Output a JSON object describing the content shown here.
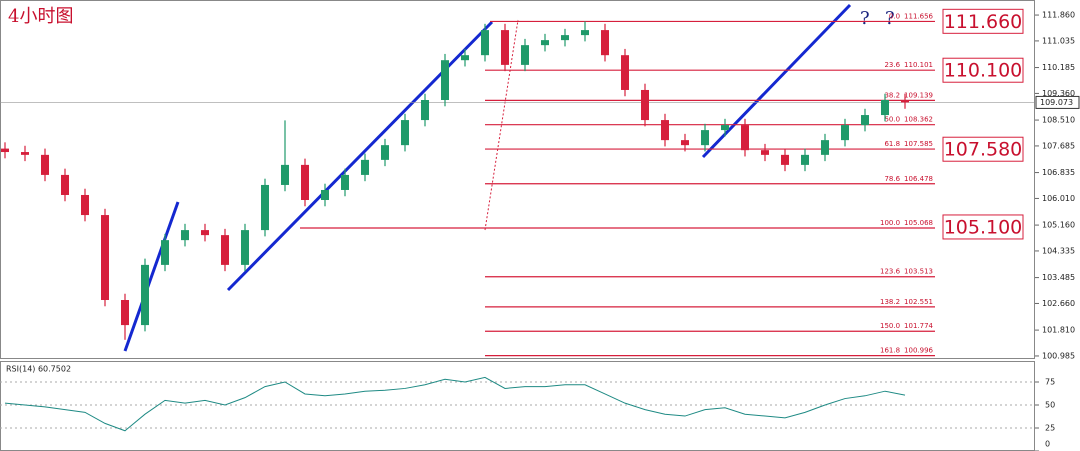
{
  "chart_data": [
    {
      "type": "candlestick",
      "title": "4小时图",
      "open": [
        107.6,
        107.49,
        107.4,
        106.76,
        106.12,
        105.48,
        102.77,
        101.97,
        103.89,
        104.68,
        105.0,
        104.84,
        103.89,
        105.0,
        106.44,
        107.08,
        105.96,
        106.28,
        106.76,
        107.24,
        107.71,
        108.51,
        109.15,
        110.42,
        110.58,
        111.38,
        110.27,
        110.9,
        111.06,
        111.22,
        111.38,
        110.58,
        109.47,
        108.51,
        107.87,
        107.71,
        108.19,
        108.35,
        107.55,
        107.4,
        107.08,
        107.4,
        107.87,
        108.35,
        108.67,
        109.15
      ],
      "high": [
        107.8,
        107.69,
        107.6,
        106.96,
        106.32,
        105.68,
        102.97,
        104.09,
        104.88,
        105.2,
        105.2,
        105.04,
        105.2,
        106.64,
        108.5,
        107.28,
        106.48,
        106.96,
        107.44,
        107.91,
        108.71,
        109.35,
        110.62,
        110.78,
        111.58,
        111.58,
        111.1,
        111.26,
        111.42,
        111.66,
        111.58,
        110.78,
        109.67,
        108.71,
        108.07,
        108.39,
        108.55,
        108.55,
        107.75,
        107.6,
        107.6,
        108.07,
        108.55,
        108.87,
        109.35,
        109.35
      ],
      "low": [
        107.29,
        107.2,
        106.56,
        105.92,
        105.28,
        102.57,
        101.5,
        101.77,
        103.69,
        104.48,
        104.64,
        103.69,
        103.69,
        104.8,
        106.24,
        105.76,
        105.76,
        106.08,
        106.56,
        107.04,
        107.51,
        108.31,
        108.95,
        110.22,
        110.38,
        110.07,
        110.07,
        110.7,
        110.86,
        111.02,
        110.38,
        109.27,
        108.31,
        107.67,
        107.51,
        107.51,
        107.99,
        107.35,
        107.2,
        106.88,
        106.88,
        107.2,
        107.67,
        108.15,
        108.47,
        108.87
      ],
      "close": [
        107.49,
        107.4,
        106.76,
        106.12,
        105.48,
        102.77,
        101.97,
        103.89,
        104.68,
        105.0,
        104.84,
        103.89,
        105.0,
        106.44,
        107.08,
        105.96,
        106.28,
        106.76,
        107.24,
        107.71,
        108.51,
        109.15,
        110.42,
        110.58,
        111.38,
        110.27,
        110.9,
        111.06,
        111.22,
        111.38,
        110.58,
        109.47,
        108.51,
        107.87,
        107.71,
        108.19,
        108.35,
        107.55,
        107.4,
        107.08,
        107.4,
        107.87,
        108.35,
        108.67,
        109.15,
        109.073
      ],
      "up_color": "#1f9a6a",
      "down_color": "#d61f3c",
      "ylim": [
        100.92,
        112.34
      ],
      "yticks": [
        {
          "value": 111.86,
          "label": "111.860"
        },
        111.035,
        110.185,
        {
          "value": 109.36,
          "label": "109.360"
        },
        {
          "value": 108.51,
          "label": "108.510"
        },
        107.685,
        106.835,
        {
          "value": 106.01,
          "label": "106.010"
        },
        {
          "value": 105.16,
          "label": "105.160"
        },
        104.335,
        103.485,
        {
          "value": 102.66,
          "label": "102.660"
        },
        {
          "value": 101.81,
          "label": "101.810"
        },
        100.985
      ],
      "current_price": 109.073,
      "fib_levels": [
        {
          "ratio": "0.0",
          "price": 111.656
        },
        {
          "ratio": "23.6",
          "price": 110.101
        },
        {
          "ratio": "38.2",
          "price": 109.139
        },
        {
          "ratio": "50.0",
          "price": 108.362
        },
        {
          "ratio": "61.8",
          "price": 107.585
        },
        {
          "ratio": "78.6",
          "price": 106.478
        },
        {
          "ratio": "100.0",
          "price": 105.068
        },
        {
          "ratio": "123.6",
          "price": 103.513
        },
        {
          "ratio": "138.2",
          "price": 102.551
        },
        {
          "ratio": "150.0",
          "price": 101.774
        },
        {
          "ratio": "161.8",
          "price": 100.996
        }
      ],
      "levels": [
        {
          "value": 111.66,
          "label": "111.660"
        },
        {
          "value": 110.1,
          "label": "110.100"
        },
        {
          "value": 107.58,
          "label": "107.580"
        },
        {
          "value": 105.1,
          "label": "105.100"
        }
      ],
      "annotations": [
        "?",
        "?"
      ]
    },
    {
      "type": "line",
      "title": "RSI(14) 60.7502",
      "color": "#1e8a84",
      "values": [
        52,
        50,
        48,
        45,
        42,
        30,
        22,
        40,
        55,
        52,
        55,
        50,
        58,
        70,
        75,
        62,
        60,
        62,
        65,
        66,
        68,
        72,
        78,
        75,
        80,
        68,
        70,
        70,
        72,
        72,
        62,
        52,
        45,
        40,
        38,
        45,
        47,
        40,
        38,
        36,
        42,
        50,
        57,
        60,
        65,
        60.7502
      ],
      "ylim": [
        0,
        100
      ],
      "yticks": [
        0,
        25,
        50,
        75
      ]
    }
  ]
}
